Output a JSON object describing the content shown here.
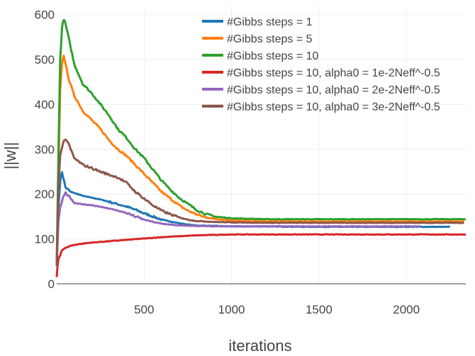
{
  "chart_data": {
    "type": "line",
    "title": "",
    "xlabel": "iterations",
    "ylabel": "||w||",
    "xlim": [
      0,
      2340
    ],
    "ylim": [
      0,
      620
    ],
    "xticks": [
      500,
      1000,
      1500,
      2000
    ],
    "xtick_labels": [
      "500",
      "1000",
      "1500",
      "2000"
    ],
    "yticks": [
      0,
      100,
      200,
      300,
      400,
      500,
      600
    ],
    "ytick_labels": [
      "0",
      "100",
      "200",
      "300",
      "400",
      "500",
      "600"
    ],
    "grid": true,
    "legend_position": "top-right",
    "series": [
      {
        "name": "#Gibbs steps = 1",
        "color": "#1f77b4",
        "x": [
          0,
          10,
          20,
          30,
          50,
          80,
          120,
          160,
          200,
          250,
          300,
          350,
          400,
          450,
          500,
          550,
          600,
          650,
          700,
          750,
          800,
          900,
          1000,
          1100,
          1200,
          1400,
          1600,
          1800,
          2000,
          2250
        ],
        "y": [
          40,
          170,
          230,
          250,
          215,
          205,
          200,
          195,
          192,
          188,
          183,
          177,
          172,
          165,
          157,
          150,
          143,
          139,
          135,
          132,
          130,
          129,
          128,
          128,
          128,
          127,
          127,
          127,
          127,
          127
        ]
      },
      {
        "name": "#Gibbs steps = 5",
        "color": "#ff7f0e",
        "x": [
          0,
          10,
          20,
          30,
          40,
          50,
          70,
          100,
          150,
          200,
          250,
          300,
          350,
          400,
          450,
          500,
          550,
          600,
          650,
          700,
          750,
          800,
          850,
          900,
          1000,
          1100,
          1200,
          1400,
          1600,
          1800,
          2000,
          2200,
          2330
        ],
        "y": [
          40,
          250,
          430,
          490,
          510,
          490,
          455,
          420,
          385,
          365,
          345,
          320,
          300,
          285,
          265,
          245,
          225,
          205,
          190,
          175,
          163,
          155,
          148,
          145,
          141,
          140,
          139,
          139,
          139,
          139,
          139,
          139,
          139
        ]
      },
      {
        "name": "#Gibbs steps = 10",
        "color": "#2ca02c",
        "x": [
          0,
          10,
          20,
          30,
          40,
          50,
          70,
          100,
          150,
          200,
          250,
          300,
          350,
          400,
          450,
          500,
          550,
          600,
          650,
          700,
          750,
          800,
          850,
          900,
          1000,
          1100,
          1200,
          1400,
          1600,
          1800,
          2000,
          2200,
          2340
        ],
        "y": [
          40,
          300,
          500,
          570,
          590,
          580,
          545,
          490,
          445,
          425,
          400,
          375,
          345,
          325,
          300,
          280,
          255,
          230,
          210,
          192,
          178,
          165,
          156,
          150,
          146,
          145,
          144,
          144,
          144,
          144,
          144,
          144,
          144
        ]
      },
      {
        "name": "#Gibbs steps = 10, alpha0 = 1e-2Neff^-0.5",
        "color": "#d62728",
        "x": [
          0,
          5,
          10,
          20,
          30,
          50,
          80,
          120,
          200,
          300,
          400,
          500,
          600,
          700,
          800,
          900,
          1000,
          1200,
          1400,
          1600,
          1800,
          2000,
          2200,
          2340
        ],
        "y": [
          15,
          40,
          55,
          65,
          75,
          80,
          85,
          88,
          92,
          95,
          98,
          101,
          104,
          106,
          108,
          109,
          110,
          110,
          110,
          110,
          110,
          110,
          110,
          110
        ]
      },
      {
        "name": "#Gibbs steps = 10, alpha0 = 2e-2Neff^-0.5",
        "color": "#9467bd",
        "x": [
          0,
          10,
          20,
          30,
          40,
          50,
          70,
          100,
          150,
          200,
          250,
          300,
          350,
          400,
          450,
          500,
          550,
          600,
          700,
          800,
          900,
          1000,
          1200,
          1400,
          1600,
          1800,
          2000,
          2080
        ],
        "y": [
          40,
          140,
          170,
          185,
          195,
          203,
          195,
          180,
          177,
          175,
          172,
          168,
          163,
          158,
          150,
          143,
          138,
          134,
          130,
          129,
          128,
          128,
          128,
          128,
          128,
          128,
          128,
          128
        ]
      },
      {
        "name": "#Gibbs steps = 10, alpha0 = 3e-2Neff^-0.5",
        "color": "#8c564b",
        "x": [
          0,
          10,
          20,
          30,
          40,
          50,
          60,
          80,
          100,
          150,
          200,
          250,
          300,
          350,
          400,
          450,
          500,
          550,
          600,
          650,
          700,
          750,
          800,
          900,
          1000,
          1200,
          1400,
          1600,
          1800,
          2000,
          2200,
          2330
        ],
        "y": [
          40,
          220,
          285,
          305,
          318,
          322,
          318,
          300,
          280,
          265,
          258,
          250,
          243,
          237,
          225,
          205,
          190,
          175,
          163,
          155,
          148,
          143,
          140,
          138,
          137,
          136,
          136,
          136,
          136,
          136,
          136,
          136
        ]
      }
    ]
  }
}
